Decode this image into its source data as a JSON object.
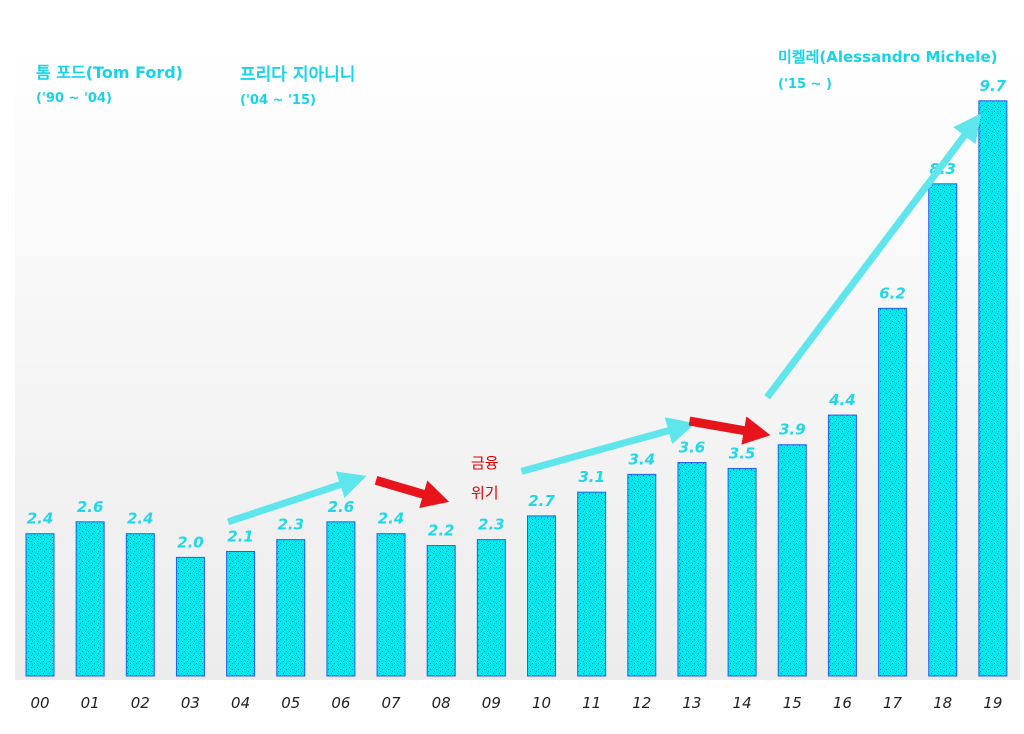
{
  "chart_data": {
    "type": "bar",
    "title": "",
    "xlabel": "",
    "ylabel": "",
    "ylim": [
      0,
      10
    ],
    "grid": false,
    "categories": [
      "00",
      "01",
      "02",
      "03",
      "04",
      "05",
      "06",
      "07",
      "08",
      "09",
      "10",
      "11",
      "12",
      "13",
      "14",
      "15",
      "16",
      "17",
      "18",
      "19"
    ],
    "values": [
      2.4,
      2.6,
      2.4,
      2.0,
      2.1,
      2.3,
      2.6,
      2.4,
      2.2,
      2.3,
      2.7,
      3.1,
      3.4,
      3.6,
      3.5,
      3.9,
      4.4,
      6.2,
      8.3,
      9.7
    ],
    "value_labels": [
      "2.4",
      "2.6",
      "2.4",
      "2.0",
      "2.1",
      "2.3",
      "2.6",
      "2.4",
      "2.2",
      "2.3",
      "2.7",
      "3.1",
      "3.4",
      "3.6",
      "3.5",
      "3.9",
      "4.4",
      "6.2",
      "8.3",
      "9.7"
    ],
    "annotations": {
      "tom_ford": {
        "name": "톰 포드(Tom Ford)",
        "period": "('90 ~ '04)"
      },
      "frida": {
        "name": "프리다 지아니니",
        "period": "('04 ~ '15)"
      },
      "michele": {
        "name": "미켈레(Alessandro Michele)",
        "period": "('15 ~ )"
      },
      "crisis": {
        "line1": "금융",
        "line2": "위기"
      }
    },
    "trend_arrows": [
      {
        "from": "04",
        "to": "06",
        "direction": "up",
        "color": "#5ee6ec"
      },
      {
        "from": "07",
        "to": "08",
        "direction": "down",
        "color": "#e8141c"
      },
      {
        "from": "10",
        "to": "13",
        "direction": "up",
        "color": "#5ee6ec"
      },
      {
        "from": "13",
        "to": "14",
        "direction": "down",
        "color": "#e8141c"
      },
      {
        "from": "15",
        "to": "18",
        "direction": "up",
        "color": "#5ee6ec"
      }
    ],
    "colors": {
      "bar": "#00e8ee",
      "bar_pattern": "#2a5cf0",
      "label": "#1fd9e8",
      "crisis": "#e00000"
    }
  }
}
